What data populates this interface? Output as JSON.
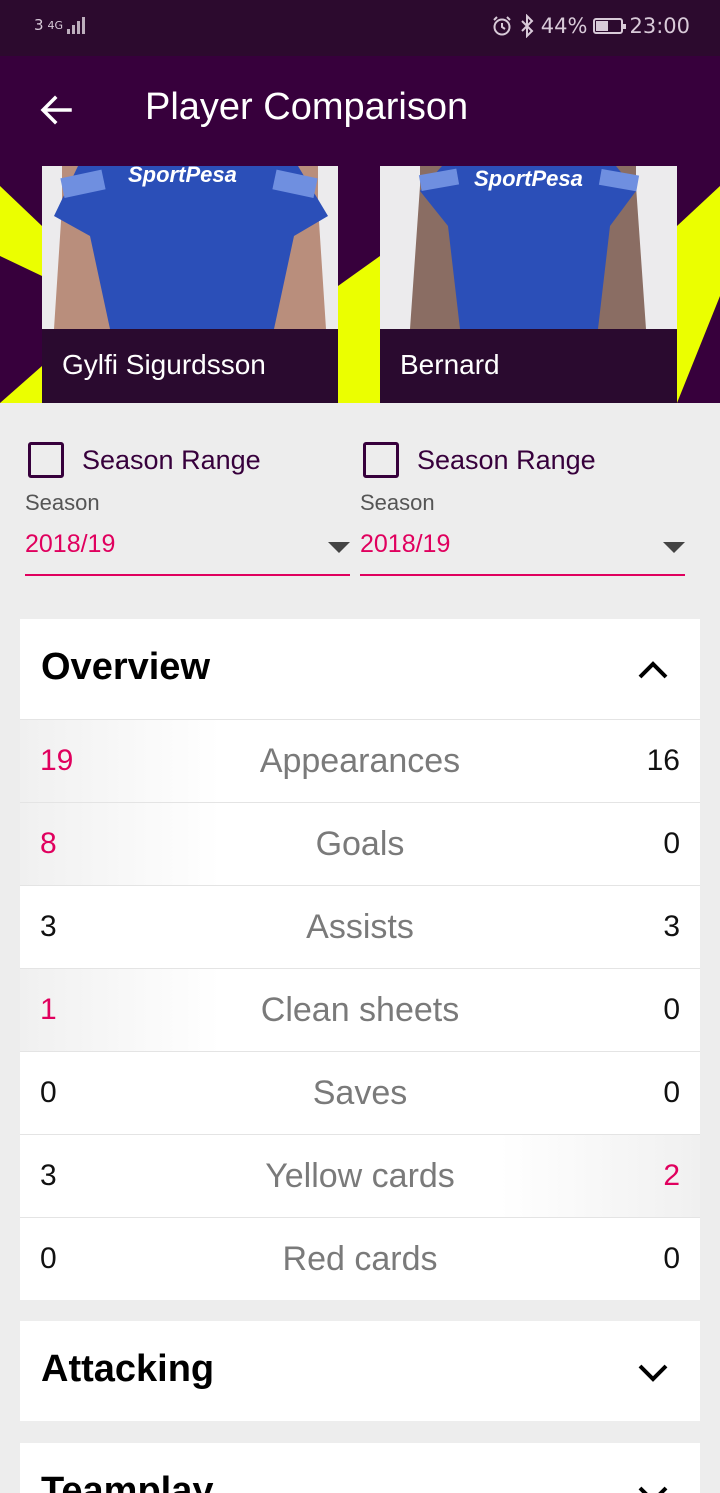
{
  "status_bar": {
    "network": "3",
    "network_type": "4G",
    "battery": "44%",
    "time": "23:00"
  },
  "header": {
    "title": "Player Comparison"
  },
  "players": [
    {
      "name": "Gylfi Sigurdsson",
      "shirt_sponsor": "SportPesa"
    },
    {
      "name": "Bernard",
      "shirt_sponsor": "SportPesa"
    }
  ],
  "selectors": [
    {
      "checkbox_label": "Season Range",
      "season_caption": "Season",
      "season_value": "2018/19"
    },
    {
      "checkbox_label": "Season Range",
      "season_caption": "Season",
      "season_value": "2018/19"
    }
  ],
  "overview": {
    "title": "Overview",
    "rows": [
      {
        "label": "Appearances",
        "left": "19",
        "right": "16",
        "leader": "left"
      },
      {
        "label": "Goals",
        "left": "8",
        "right": "0",
        "leader": "left"
      },
      {
        "label": "Assists",
        "left": "3",
        "right": "3",
        "leader": "none"
      },
      {
        "label": "Clean sheets",
        "left": "1",
        "right": "0",
        "leader": "left"
      },
      {
        "label": "Saves",
        "left": "0",
        "right": "0",
        "leader": "none"
      },
      {
        "label": "Yellow cards",
        "left": "3",
        "right": "2",
        "leader": "right"
      },
      {
        "label": "Red cards",
        "left": "0",
        "right": "0",
        "leader": "none"
      }
    ]
  },
  "attacking": {
    "title": "Attacking"
  },
  "teamplay": {
    "title": "Teamplay"
  },
  "colors": {
    "brand_purple": "#37003c",
    "accent_pink": "#e0005e",
    "accent_yellow": "#ebff00"
  }
}
